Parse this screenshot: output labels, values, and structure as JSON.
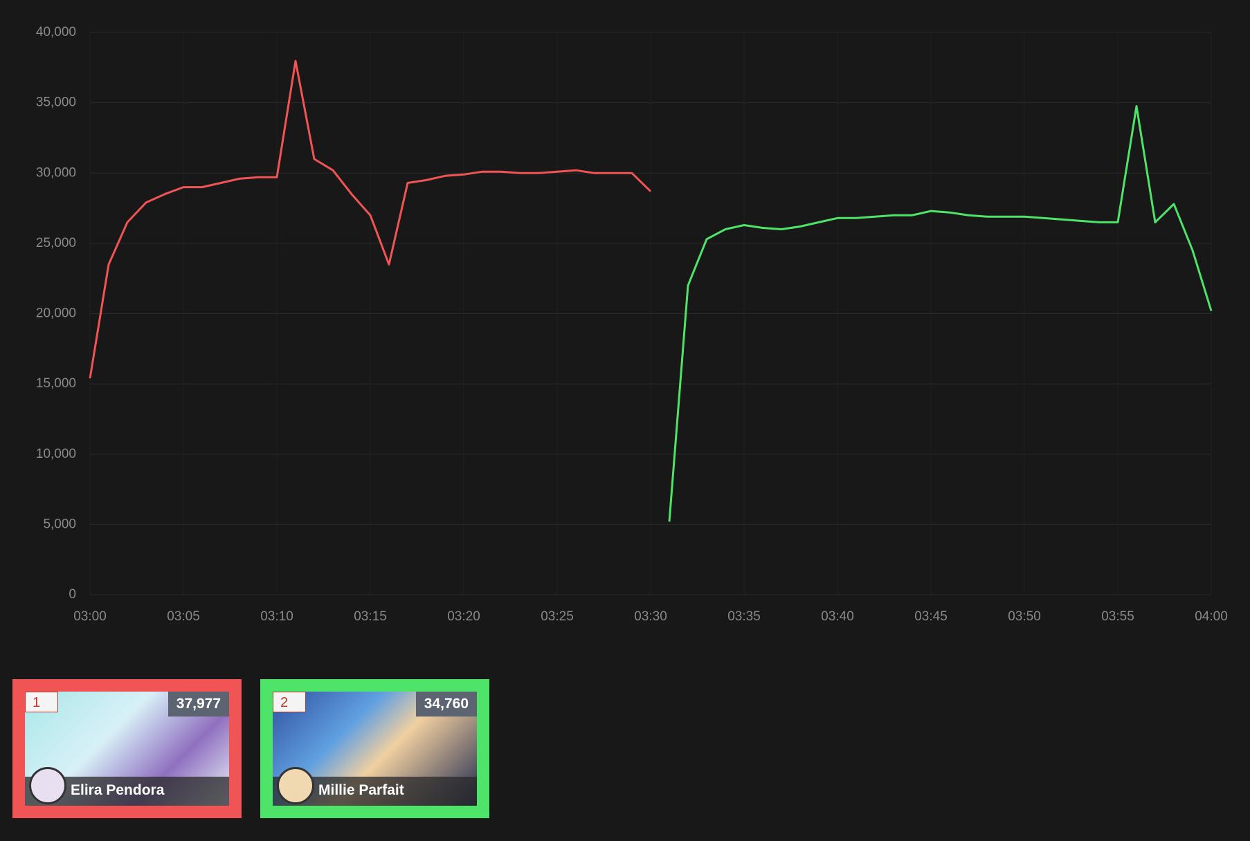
{
  "chart_data": {
    "type": "line",
    "x": [
      "03:00",
      "03:01",
      "03:02",
      "03:03",
      "03:04",
      "03:05",
      "03:06",
      "03:07",
      "03:08",
      "03:09",
      "03:10",
      "03:11",
      "03:12",
      "03:13",
      "03:14",
      "03:15",
      "03:16",
      "03:17",
      "03:18",
      "03:19",
      "03:20",
      "03:21",
      "03:22",
      "03:23",
      "03:24",
      "03:25",
      "03:26",
      "03:27",
      "03:28",
      "03:29",
      "03:30",
      "03:31",
      "03:32",
      "03:33",
      "03:34",
      "03:35",
      "03:36",
      "03:37",
      "03:38",
      "03:39",
      "03:40",
      "03:41",
      "03:42",
      "03:43",
      "03:44",
      "03:45",
      "03:46",
      "03:47",
      "03:48",
      "03:49",
      "03:50",
      "03:51",
      "03:52",
      "03:53",
      "03:54",
      "03:55",
      "03:56",
      "03:57",
      "03:58",
      "03:59",
      "04:00"
    ],
    "series": [
      {
        "name": "Elira Pendora",
        "color": "#f05454",
        "values": [
          15400,
          23500,
          26500,
          27900,
          28500,
          29000,
          29000,
          29300,
          29600,
          29700,
          29700,
          37977,
          31000,
          30200,
          28500,
          27000,
          23500,
          29300,
          29500,
          29800,
          29900,
          30100,
          30100,
          30000,
          30000,
          30100,
          30200,
          30000,
          30000,
          30000,
          28700,
          null,
          null,
          null,
          null,
          null,
          null,
          null,
          null,
          null,
          null,
          null,
          null,
          null,
          null,
          null,
          null,
          null,
          null,
          null,
          null,
          null,
          null,
          null,
          null,
          null,
          null,
          null,
          null,
          null,
          null
        ]
      },
      {
        "name": "Millie Parfait",
        "color": "#4ee46a",
        "values": [
          null,
          null,
          null,
          null,
          null,
          null,
          null,
          null,
          null,
          null,
          null,
          null,
          null,
          null,
          null,
          null,
          null,
          null,
          null,
          null,
          null,
          null,
          null,
          null,
          null,
          null,
          null,
          null,
          null,
          null,
          null,
          5200,
          22000,
          25300,
          26000,
          26300,
          26100,
          26000,
          26200,
          26500,
          26800,
          26800,
          26900,
          27000,
          27000,
          27300,
          27200,
          27000,
          26900,
          26900,
          26900,
          26800,
          26700,
          26600,
          26500,
          26500,
          34760,
          26500,
          27800,
          24500,
          20200
        ]
      }
    ],
    "xlim": [
      "03:00",
      "04:00"
    ],
    "xticks": [
      "03:00",
      "03:05",
      "03:10",
      "03:15",
      "03:20",
      "03:25",
      "03:30",
      "03:35",
      "03:40",
      "03:45",
      "03:50",
      "03:55",
      "04:00"
    ],
    "ylim": [
      0,
      40000
    ],
    "yticks": [
      0,
      {
        "value": 5000,
        "label": "5,000"
      },
      {
        "value": 10000,
        "label": "10,000"
      },
      {
        "value": 15000,
        "label": "15,000"
      },
      {
        "value": 20000,
        "label": "20,000"
      },
      {
        "value": 25000,
        "label": "25,000"
      },
      {
        "value": 30000,
        "label": "30,000"
      },
      {
        "value": 35000,
        "label": "35,000"
      },
      {
        "value": 40000,
        "label": "40,000"
      }
    ],
    "grid": true
  },
  "cards": [
    {
      "rank": 1,
      "peak": "37,977"
    },
    {
      "rank": 2,
      "peak": "34,760"
    }
  ]
}
